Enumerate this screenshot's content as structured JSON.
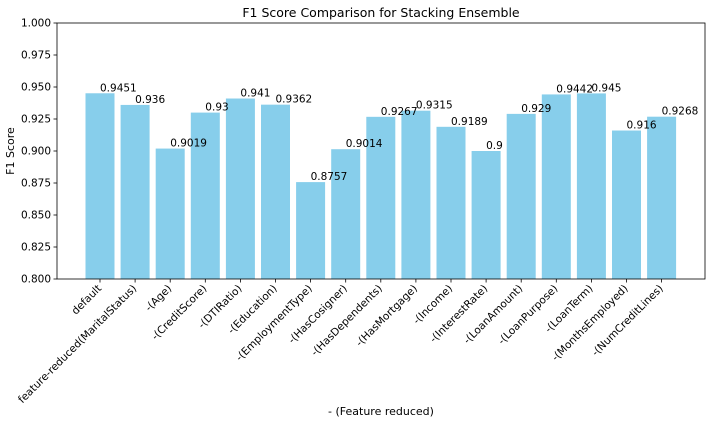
{
  "chart_data": {
    "type": "bar",
    "title": "F1 Score Comparison for Stacking Ensemble",
    "xlabel": "- (Feature reduced)",
    "ylabel": "F1 Score",
    "ylim": [
      0.8,
      1.0
    ],
    "yticks": [
      "0.800",
      "0.825",
      "0.850",
      "0.875",
      "0.900",
      "0.925",
      "0.950",
      "0.975",
      "1.000"
    ],
    "categories": [
      "default",
      "feature-reduced(MaritalStatus)",
      "-(Age)",
      "-(CreditScore)",
      "-(DTIRatio)",
      "-(Education)",
      "-(EmploymentType)",
      "-(HasCosigner)",
      "-(HasDependents)",
      "-(HasMortgage)",
      "-(Income)",
      "-(InterestRate)",
      "-(LoanAmount)",
      "-(LoanPurpose)",
      "-(LoanTerm)",
      "-(MonthsEmployed)",
      "-(NumCreditLines)"
    ],
    "values": [
      0.9451,
      0.936,
      0.9019,
      0.93,
      0.941,
      0.9362,
      0.8757,
      0.9014,
      0.9267,
      0.9315,
      0.9189,
      0.9,
      0.929,
      0.9442,
      0.945,
      0.916,
      0.9268
    ],
    "data_labels": [
      "0.9451",
      "0.936",
      "0.9019",
      "0.93",
      "0.941",
      "0.9362",
      "0.8757",
      "0.9014",
      "0.9267",
      "0.9315",
      "0.9189",
      "0.9",
      "0.929",
      "0.9442",
      "0.945",
      "0.916",
      "0.9268"
    ],
    "bar_color": "#87ceeb",
    "grid": false,
    "legend": "none"
  }
}
